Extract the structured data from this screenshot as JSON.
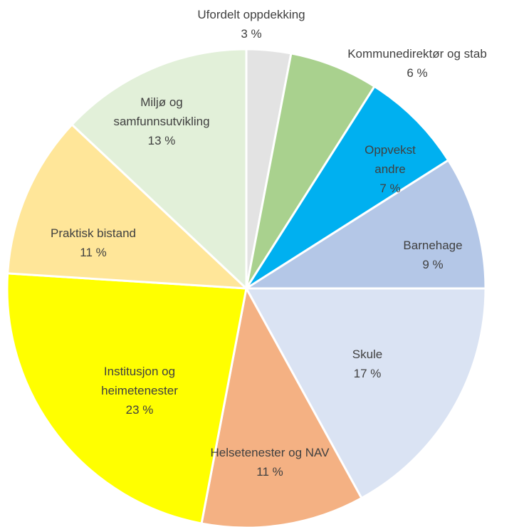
{
  "chart_data": {
    "type": "pie",
    "categories": [
      "Ufordelt oppdekking",
      "Kommunedirektør og stab",
      "Oppvekst andre",
      "Barnehage",
      "Skule",
      "Helsetenester og NAV",
      "Institusjon og heimetenester",
      "Praktisk bistand",
      "Miljø og samfunnsutvikling"
    ],
    "values": [
      3,
      6,
      7,
      9,
      17,
      11,
      23,
      11,
      13
    ],
    "value_labels": [
      "3 %",
      "6 %",
      "7 %",
      "9 %",
      "17 %",
      "11 %",
      "23 %",
      "11 %",
      "13 %"
    ],
    "colors": [
      "#e3e3e3",
      "#a9d18e",
      "#00b0f0",
      "#b4c7e7",
      "#dae3f3",
      "#f4b183",
      "#ffff00",
      "#ffe699",
      "#e2f0d9"
    ]
  }
}
